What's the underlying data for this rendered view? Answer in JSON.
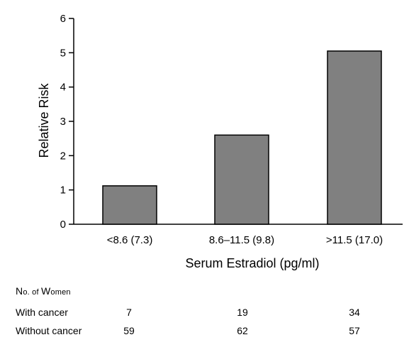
{
  "chart_data": {
    "type": "bar",
    "categories": [
      "<8.6 (7.3)",
      "8.6–11.5 (9.8)",
      ">11.5 (17.0)"
    ],
    "values": [
      1.12,
      2.6,
      5.05
    ],
    "xlabel": "Serum Estradiol (pg/ml)",
    "ylabel": "Relative Risk",
    "ylim": [
      0,
      6
    ],
    "yticks": [
      "0",
      "1",
      "2",
      "3",
      "4",
      "5",
      "6"
    ],
    "bar_color": "#808080",
    "grid": false
  },
  "table": {
    "heading": {
      "first": "N",
      "second": "o. of ",
      "third": "W",
      "fourth": "omen"
    },
    "rows": [
      {
        "label": "With cancer",
        "values": [
          "7",
          "19",
          "34"
        ]
      },
      {
        "label": "Without cancer",
        "values": [
          "59",
          "62",
          "57"
        ]
      }
    ]
  }
}
